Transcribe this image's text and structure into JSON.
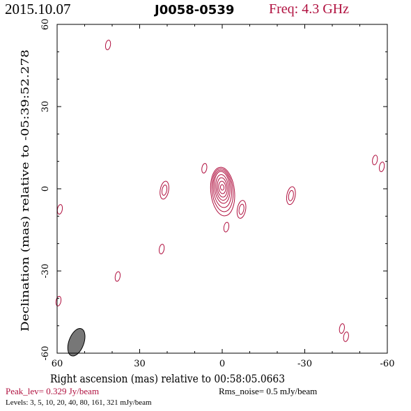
{
  "header": {
    "date": "2015.10.07",
    "source": "J0058-0539",
    "freq": "Freq: 4.3 GHz"
  },
  "footer": {
    "peak": "Peak_lev=  0.329 Jy/beam",
    "rms": "Rms_noise=  0.5 mJy/beam",
    "levels": "Levels:   3,    5,   10,   20,   40,   80, 161, 321  mJy/beam"
  },
  "colors": {
    "contour": "#b0103f",
    "frame": "#000000",
    "beam": "#777777"
  },
  "chart_data": {
    "type": "contour",
    "xlabel": "Right ascension (mas) relative to 00:58:05.0663",
    "ylabel": "Declination (mas) relative to -05:39:52.278",
    "xlim": [
      60,
      -60
    ],
    "ylim": [
      -60,
      60
    ],
    "xticks": [
      60,
      30,
      0,
      -30,
      -60
    ],
    "yticks": [
      -60,
      -30,
      0,
      30,
      60
    ],
    "grid": false,
    "units": "mJy/beam",
    "levels": [
      3,
      5,
      10,
      20,
      40,
      80,
      161,
      321
    ],
    "peak_jy_per_beam": 0.329,
    "rms_mjy_per_beam": 0.5,
    "core": {
      "x": 0,
      "y": 0.5,
      "contour_count": 8
    },
    "beam": {
      "x": 53,
      "y": -56,
      "major_mas": 5.5,
      "minor_mas": 3.2,
      "pa_deg": 20
    },
    "components": [
      {
        "x": 41.5,
        "y": 52.5,
        "levels": 1
      },
      {
        "x": 6.5,
        "y": 7.5,
        "levels": 1
      },
      {
        "x": 21,
        "y": -0.5,
        "levels": 2
      },
      {
        "x": 59,
        "y": -7.5,
        "levels": 1
      },
      {
        "x": -7,
        "y": -7.5,
        "levels": 2
      },
      {
        "x": -1.5,
        "y": -14,
        "levels": 1
      },
      {
        "x": -25,
        "y": -2.5,
        "levels": 2
      },
      {
        "x": 22,
        "y": -22,
        "levels": 1
      },
      {
        "x": 38,
        "y": -32,
        "levels": 1
      },
      {
        "x": 59.5,
        "y": -41,
        "levels": 1
      },
      {
        "x": -55.5,
        "y": 10.5,
        "levels": 1
      },
      {
        "x": -58,
        "y": 8,
        "levels": 1
      },
      {
        "x": -43.5,
        "y": -51,
        "levels": 1
      },
      {
        "x": -45,
        "y": -54,
        "levels": 1
      }
    ]
  }
}
